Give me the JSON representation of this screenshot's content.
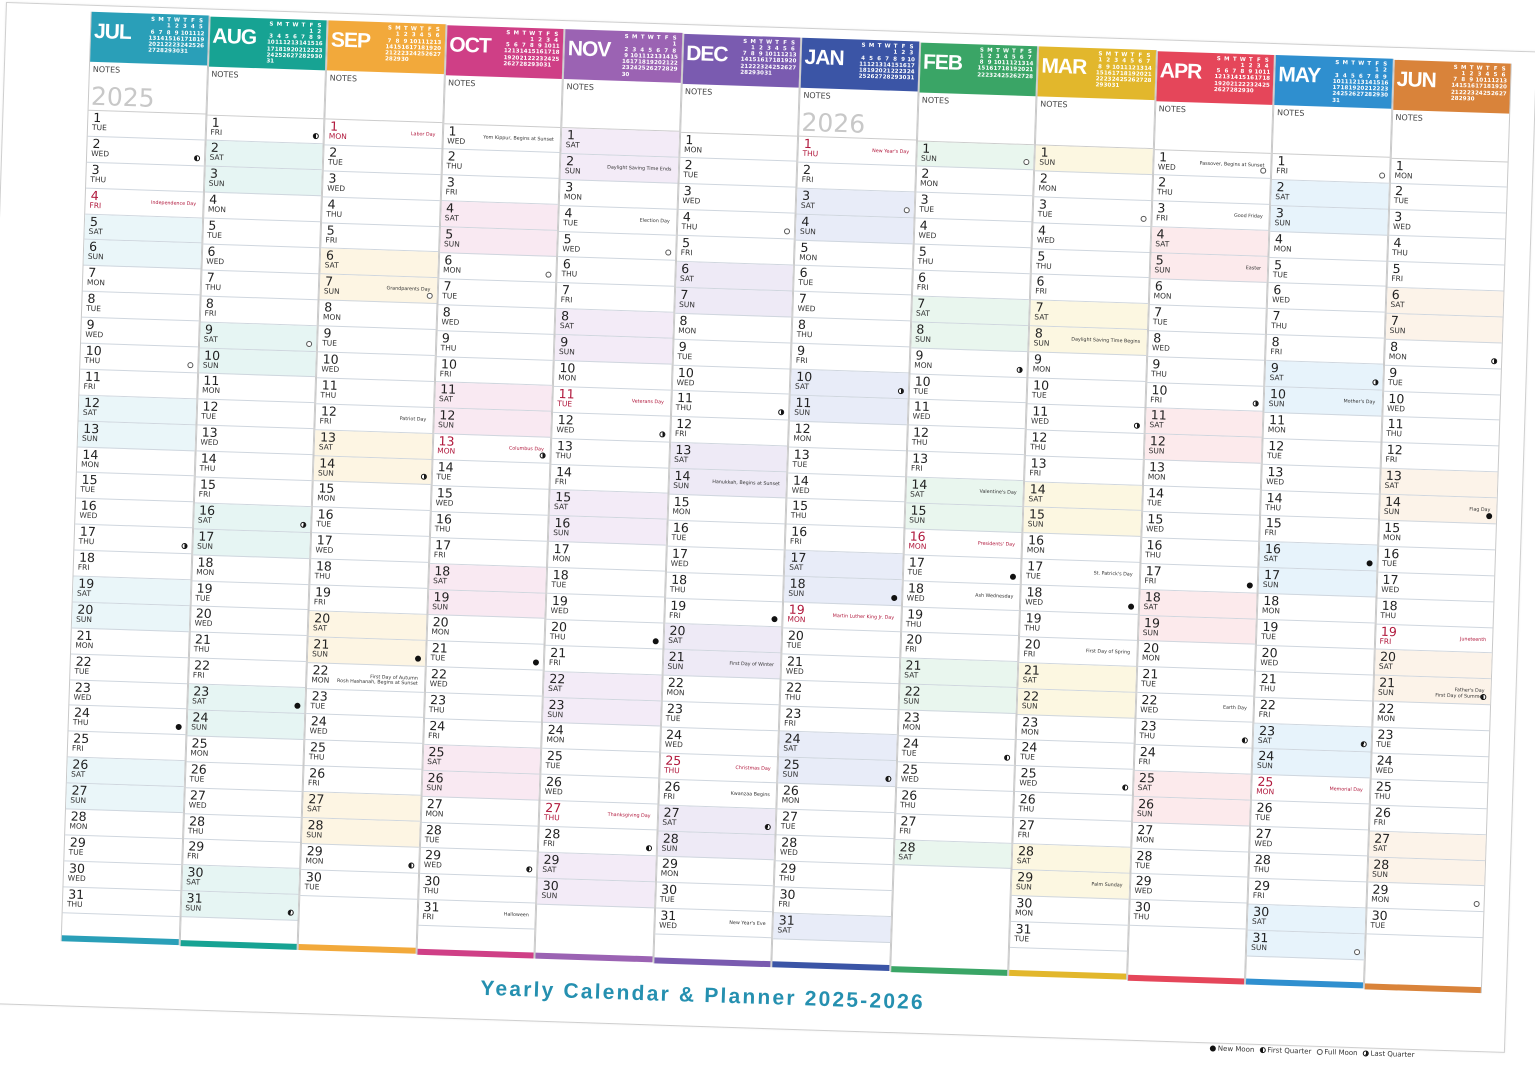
{
  "title": "Yearly Calendar & Planner 2025-2026",
  "notes_label": "NOTES",
  "years": {
    "start": "2025",
    "end": "2026"
  },
  "legend": [
    {
      "type": "new",
      "label": "New Moon"
    },
    {
      "type": "first",
      "label": "First Quarter"
    },
    {
      "type": "full",
      "label": "Full Moon"
    },
    {
      "type": "last",
      "label": "Last Quarter"
    }
  ],
  "mini_headers": [
    "S",
    "M",
    "T",
    "W",
    "T",
    "F",
    "S"
  ],
  "months": [
    {
      "name": "JUL",
      "year": "2025",
      "color": "#2a9fb8",
      "tint": "#eaf6f9",
      "start": 2,
      "days": 31,
      "year_mark": "2025",
      "holidays": {
        "4": "Independence Day"
      },
      "events": {},
      "moons": {
        "2": "first",
        "10": "full",
        "17": "last",
        "24": "new"
      }
    },
    {
      "name": "AUG",
      "year": "2025",
      "color": "#17a393",
      "tint": "#e6f5f3",
      "start": 5,
      "days": 31,
      "holidays": {},
      "events": {},
      "moons": {
        "1": "first",
        "9": "full",
        "16": "last",
        "23": "new",
        "31": "first"
      }
    },
    {
      "name": "SEP",
      "year": "2025",
      "color": "#f2a93b",
      "tint": "#fdf5e3",
      "start": 1,
      "days": 30,
      "holidays": {
        "1": "Labor Day"
      },
      "events": {
        "7": "Grandparents Day",
        "12": "Patriot Day",
        "22": "First Day of Autumn\nRosh Hashanah, Begins at Sunset"
      },
      "moons": {
        "7": "full",
        "14": "last",
        "21": "new",
        "29": "first"
      }
    },
    {
      "name": "OCT",
      "year": "2025",
      "color": "#cf3f86",
      "tint": "#f9e9f2",
      "start": 3,
      "days": 31,
      "holidays": {
        "13": "Columbus Day"
      },
      "events": {
        "1": "Yom Kippur, Begins at Sunset",
        "31": "Halloween"
      },
      "moons": {
        "6": "full",
        "13": "last",
        "21": "new",
        "29": "first"
      }
    },
    {
      "name": "NOV",
      "year": "2025",
      "color": "#9b63b3",
      "tint": "#f3ebf7",
      "start": 6,
      "days": 30,
      "holidays": {
        "11": "Veterans Day",
        "27": "Thanksgiving Day"
      },
      "events": {
        "2": "Daylight Saving Time Ends",
        "4": "Election Day"
      },
      "moons": {
        "5": "full",
        "12": "last",
        "20": "new",
        "28": "first"
      }
    },
    {
      "name": "DEC",
      "year": "2025",
      "color": "#7a5bb0",
      "tint": "#eeeaf6",
      "start": 1,
      "days": 31,
      "holidays": {
        "25": "Christmas Day"
      },
      "events": {
        "14": "Hanukkah, Begins at Sunset",
        "21": "First Day of Winter",
        "26": "Kwanzaa Begins",
        "31": "New Year's Eve"
      },
      "moons": {
        "4": "full",
        "11": "last",
        "19": "new",
        "27": "first"
      }
    },
    {
      "name": "JAN",
      "year": "2026",
      "color": "#3b55a6",
      "tint": "#e8ecf8",
      "start": 4,
      "days": 31,
      "year_mark": "2026",
      "holidays": {
        "1": "New Year's Day",
        "19": "Martin Luther King Jr. Day"
      },
      "events": {},
      "moons": {
        "3": "full",
        "10": "last",
        "18": "new",
        "25": "first"
      }
    },
    {
      "name": "FEB",
      "year": "2026",
      "color": "#3aa566",
      "tint": "#e9f6ee",
      "start": 0,
      "days": 28,
      "holidays": {
        "16": "Presidents' Day"
      },
      "events": {
        "14": "Valentine's Day",
        "18": "Ash Wednesday"
      },
      "moons": {
        "1": "full",
        "9": "last",
        "17": "new",
        "24": "first"
      }
    },
    {
      "name": "MAR",
      "year": "2026",
      "color": "#e2b72c",
      "tint": "#fcf7e1",
      "start": 0,
      "days": 31,
      "holidays": {},
      "events": {
        "8": "Daylight Saving Time Begins",
        "17": "St. Patrick's Day",
        "20": "First Day of Spring",
        "29": "Palm Sunday"
      },
      "moons": {
        "3": "full",
        "11": "last",
        "18": "new",
        "25": "first"
      }
    },
    {
      "name": "APR",
      "year": "2026",
      "color": "#e5465a",
      "tint": "#fceaec",
      "start": 3,
      "days": 30,
      "holidays": {},
      "events": {
        "1": "Passover, Begins at Sunset",
        "3": "Good Friday",
        "5": "Easter",
        "22": "Earth Day"
      },
      "moons": {
        "1": "full",
        "10": "last",
        "17": "new",
        "23": "first"
      }
    },
    {
      "name": "MAY",
      "year": "2026",
      "color": "#2f8fcf",
      "tint": "#e7f3fb",
      "start": 5,
      "days": 31,
      "holidays": {
        "25": "Memorial Day"
      },
      "events": {
        "10": "Mother's Day"
      },
      "moons": {
        "1": "full",
        "9": "last",
        "16": "new",
        "23": "first",
        "31": "full"
      }
    },
    {
      "name": "JUN",
      "year": "2026",
      "color": "#d9833a",
      "tint": "#fcf3e9",
      "start": 1,
      "days": 30,
      "holidays": {
        "19": "Juneteenth"
      },
      "events": {
        "14": "Flag Day",
        "21": "Father's Day\nFirst Day of Summer"
      },
      "moons": {
        "8": "last",
        "14": "new",
        "21": "first",
        "29": "full"
      }
    }
  ]
}
